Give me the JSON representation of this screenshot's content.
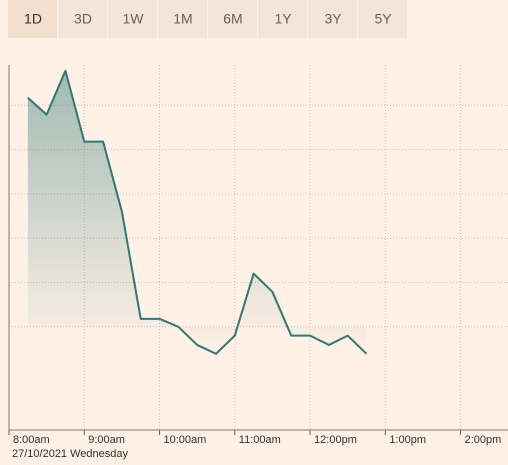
{
  "tabs": [
    "1D",
    "3D",
    "1W",
    "1M",
    "6M",
    "1Y",
    "3Y",
    "5Y"
  ],
  "active_tab": 0,
  "chart_data": {
    "type": "area",
    "subtitle": "27/10/2021 Wednesday",
    "color": "#2f7779",
    "x": [
      8.25,
      8.5,
      8.75,
      9,
      9.25,
      9.5,
      9.75,
      10,
      10.25,
      10.5,
      10.75,
      11,
      11.25,
      11.5,
      11.75,
      12,
      12.25,
      12.5,
      12.75
    ],
    "values": [
      6.17,
      5.79,
      6.78,
      5.18,
      5.18,
      3.6,
      1.18,
      1.18,
      1.0,
      0.59,
      0.39,
      0.8,
      2.2,
      1.79,
      0.8,
      0.8,
      0.59,
      0.8,
      0.39
    ],
    "xlim": [
      8,
      14.63
    ],
    "xticks": [
      {
        "value": 8,
        "label": "8:00am"
      },
      {
        "value": 9,
        "label": "9:00am"
      },
      {
        "value": 10,
        "label": "10:00am"
      },
      {
        "value": 11,
        "label": "11:00am"
      },
      {
        "value": 12,
        "label": "12:00pm"
      },
      {
        "value": 13,
        "label": "1:00pm"
      },
      {
        "value": 14,
        "label": "2:00pm"
      }
    ],
    "ylim": [
      -1.33,
      6.91
    ],
    "yticks": [
      1,
      2,
      3,
      4,
      5,
      6
    ],
    "grid": true
  }
}
